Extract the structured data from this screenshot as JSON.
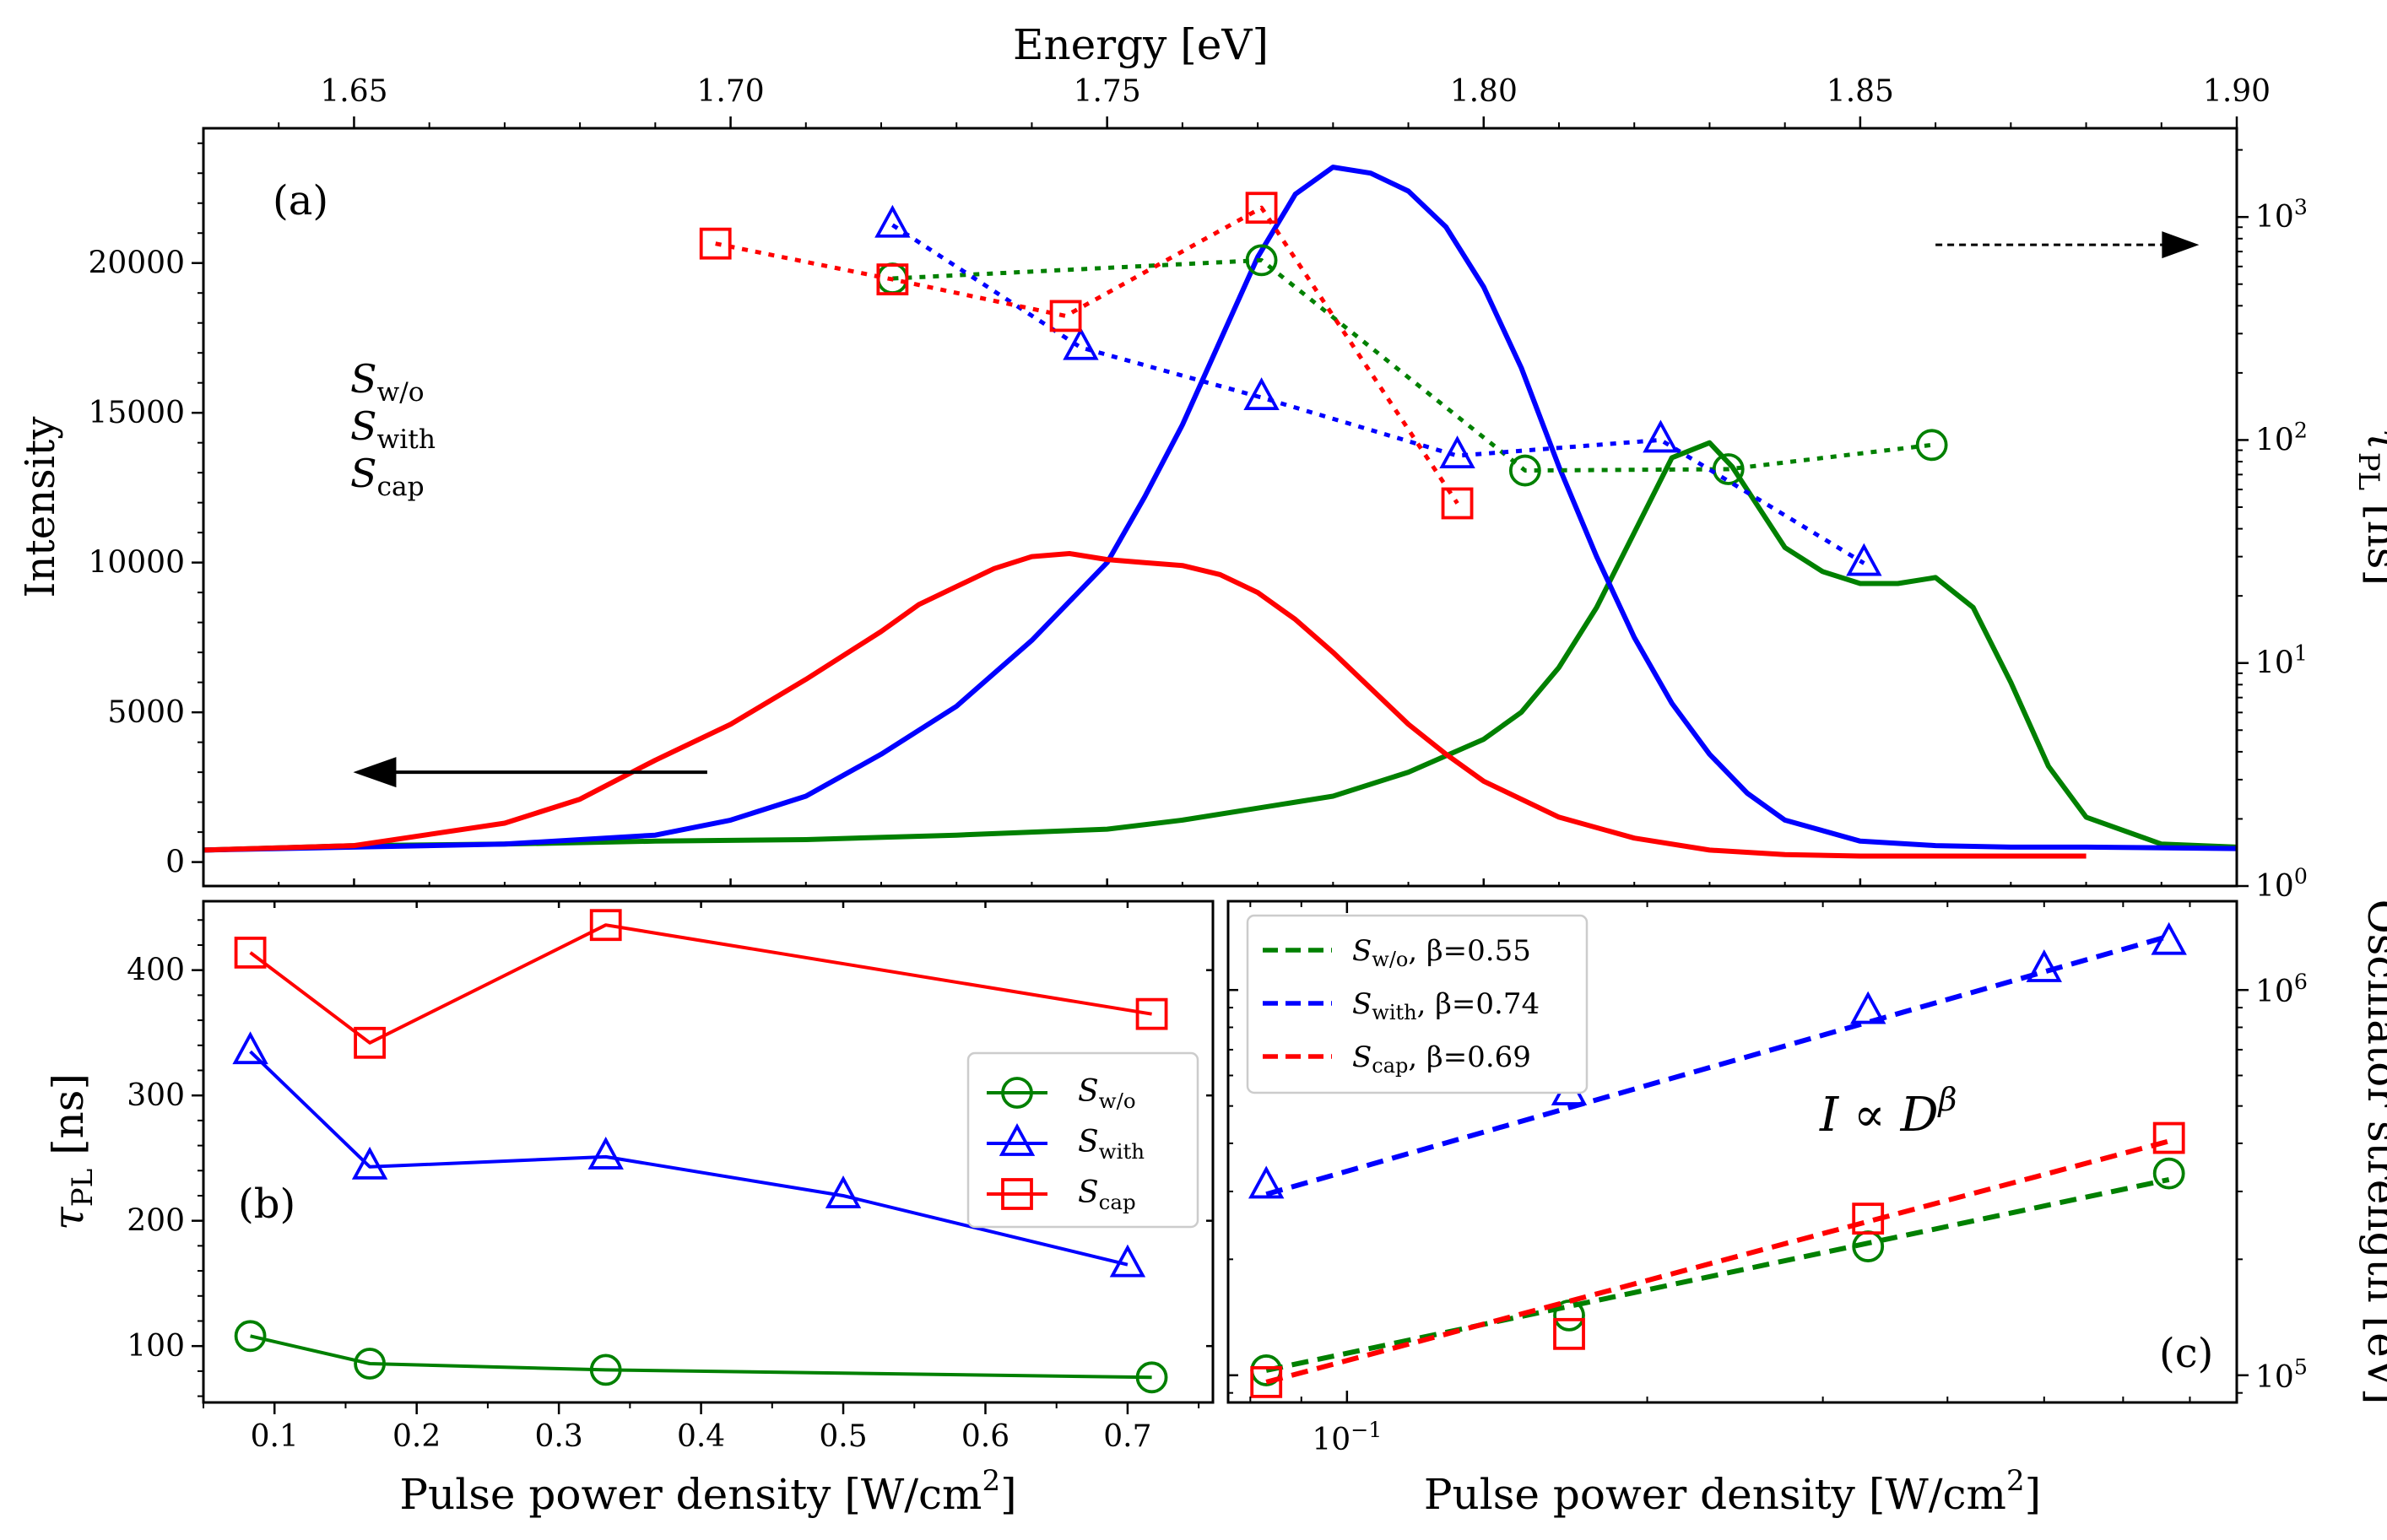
{
  "colors": {
    "w_o": "#008000",
    "with": "#0000ff",
    "cap": "#ff0000",
    "axis": "#000000"
  },
  "chart_data": [
    {
      "id": "panel-a",
      "type": "line",
      "panel_label": "(a)",
      "xlabel_top": "Energy [eV]",
      "ylabel_left": "Intensity",
      "ylabel_right_sym": "τ",
      "ylabel_right_sub": "PL",
      "ylabel_right_unit": " [ns]",
      "x_range": [
        1.63,
        1.9
      ],
      "x_ticks": [
        1.65,
        1.7,
        1.75,
        1.8,
        1.85,
        1.9
      ],
      "x_tick_labels": [
        "1.65",
        "1.70",
        "1.75",
        "1.80",
        "1.85",
        "1.90"
      ],
      "y_left_range": [
        -800,
        24500
      ],
      "y_left_ticks": [
        0,
        5000,
        10000,
        15000,
        20000
      ],
      "y_left_tick_labels": [
        "0",
        "5000",
        "10000",
        "15000",
        "20000"
      ],
      "y_right_range": [
        1,
        2500
      ],
      "y_right_scale": "log",
      "y_right_ticks": [
        1,
        10,
        100,
        1000
      ],
      "y_right_tick_labels": [
        {
          "base": "10",
          "exp": "0"
        },
        {
          "base": "10",
          "exp": "1"
        },
        {
          "base": "10",
          "exp": "2"
        },
        {
          "base": "10",
          "exp": "3"
        }
      ],
      "inline_legend": [
        {
          "sym": "S",
          "sub": "w/o",
          "color_key": "w_o"
        },
        {
          "sym": "S",
          "sub": "with",
          "color_key": "with"
        },
        {
          "sym": "S",
          "sub": "cap",
          "color_key": "cap"
        }
      ],
      "arrow_left_axis": {
        "x": [
          1.65,
          1.67
        ],
        "y": 3000
      },
      "arrow_right_axis": {
        "x": [
          1.86,
          1.895
        ],
        "y": 750
      },
      "spectra": [
        {
          "key": "w_o",
          "x": [
            1.63,
            1.65,
            1.67,
            1.69,
            1.71,
            1.73,
            1.74,
            1.75,
            1.76,
            1.77,
            1.78,
            1.79,
            1.8,
            1.805,
            1.81,
            1.815,
            1.82,
            1.825,
            1.83,
            1.833,
            1.84,
            1.845,
            1.85,
            1.855,
            1.86,
            1.865,
            1.87,
            1.875,
            1.88,
            1.89,
            1.9
          ],
          "y": [
            400,
            550,
            600,
            700,
            750,
            900,
            1000,
            1100,
            1400,
            1800,
            2200,
            3000,
            4100,
            5000,
            6500,
            8500,
            11000,
            13500,
            14000,
            13200,
            10500,
            9700,
            9300,
            9300,
            9500,
            8500,
            6000,
            3200,
            1500,
            600,
            500
          ]
        },
        {
          "key": "with",
          "x": [
            1.63,
            1.65,
            1.67,
            1.69,
            1.7,
            1.71,
            1.72,
            1.73,
            1.74,
            1.75,
            1.755,
            1.76,
            1.765,
            1.77,
            1.775,
            1.78,
            1.785,
            1.79,
            1.795,
            1.8,
            1.805,
            1.81,
            1.815,
            1.82,
            1.825,
            1.83,
            1.835,
            1.84,
            1.85,
            1.86,
            1.87,
            1.88,
            1.9
          ],
          "y": [
            400,
            500,
            600,
            900,
            1400,
            2200,
            3600,
            5200,
            7400,
            10000,
            12200,
            14600,
            17400,
            20200,
            22300,
            23200,
            23000,
            22400,
            21200,
            19200,
            16500,
            13200,
            10200,
            7500,
            5300,
            3600,
            2300,
            1400,
            700,
            550,
            500,
            500,
            450
          ]
        },
        {
          "key": "cap",
          "x": [
            1.63,
            1.65,
            1.67,
            1.68,
            1.69,
            1.7,
            1.71,
            1.72,
            1.725,
            1.73,
            1.735,
            1.74,
            1.745,
            1.75,
            1.755,
            1.76,
            1.765,
            1.77,
            1.775,
            1.78,
            1.785,
            1.79,
            1.795,
            1.8,
            1.81,
            1.82,
            1.83,
            1.84,
            1.85,
            1.86,
            1.88
          ],
          "y": [
            400,
            550,
            1300,
            2100,
            3400,
            4600,
            6100,
            7700,
            8600,
            9200,
            9800,
            10200,
            10300,
            10100,
            10000,
            9900,
            9600,
            9000,
            8100,
            7000,
            5800,
            4600,
            3600,
            2700,
            1500,
            800,
            400,
            250,
            200,
            200,
            200
          ]
        }
      ],
      "lifetimes": [
        {
          "key": "w_o",
          "marker": "circle",
          "x": [
            1.7215,
            1.7705,
            1.8055,
            1.8325,
            1.8595
          ],
          "y": [
            530,
            640,
            73,
            74,
            95
          ]
        },
        {
          "key": "with",
          "marker": "triangle",
          "x": [
            1.7215,
            1.7465,
            1.7705,
            1.7965,
            1.8235,
            1.8505
          ],
          "y": [
            920,
            260,
            155,
            85,
            100,
            28
          ]
        },
        {
          "key": "cap",
          "marker": "square",
          "x": [
            1.698,
            1.7215,
            1.7445,
            1.7705,
            1.7965
          ],
          "y": [
            760,
            525,
            360,
            1100,
            52
          ]
        }
      ]
    },
    {
      "id": "panel-b",
      "type": "line",
      "panel_label": "(b)",
      "xlabel": "Pulse power density [W/cm",
      "xlabel_sup": "2",
      "xlabel_end": "]",
      "ylabel_sym": "τ",
      "ylabel_sub": "PL",
      "ylabel_unit": " [ns]",
      "x_range": [
        0.05,
        0.76
      ],
      "x_ticks": [
        0.1,
        0.2,
        0.3,
        0.4,
        0.5,
        0.6,
        0.7
      ],
      "x_tick_labels": [
        "0.1",
        "0.2",
        "0.3",
        "0.4",
        "0.5",
        "0.6",
        "0.7"
      ],
      "y_range": [
        55,
        455
      ],
      "y_ticks": [
        100,
        200,
        300,
        400
      ],
      "y_tick_labels": [
        "100",
        "200",
        "300",
        "400"
      ],
      "legend_position": "center-right",
      "series": [
        {
          "key": "w_o",
          "name_sym": "S",
          "name_sub": "w/o",
          "marker": "circle",
          "x": [
            0.083,
            0.167,
            0.333,
            0.717
          ],
          "y": [
            108,
            86,
            81,
            75
          ]
        },
        {
          "key": "with",
          "name_sym": "S",
          "name_sub": "with",
          "marker": "triangle",
          "x": [
            0.083,
            0.167,
            0.333,
            0.5,
            0.7
          ],
          "y": [
            335,
            243,
            251,
            220,
            165
          ]
        },
        {
          "key": "cap",
          "name_sym": "S",
          "name_sub": "cap",
          "marker": "square",
          "x": [
            0.083,
            0.167,
            0.333,
            0.717
          ],
          "y": [
            414,
            342,
            436,
            365
          ]
        }
      ]
    },
    {
      "id": "panel-c",
      "type": "scatter",
      "panel_label": "(c)",
      "xlabel": "Pulse power density [W/cm",
      "xlabel_sup": "2",
      "xlabel_end": "]",
      "x_scale": "log",
      "y_scale": "log",
      "ylabel_right": "Oscillator strength [eV]",
      "x_range": [
        0.076,
        0.78
      ],
      "x_major_ticks": [
        {
          "value": 0.1,
          "base": "10",
          "exp": "−1"
        }
      ],
      "y_range": [
        85000,
        1700000
      ],
      "y_major_ticks": [
        {
          "value": 100000,
          "base": "10",
          "exp": "5"
        },
        {
          "value": 1000000,
          "base": "10",
          "exp": "6"
        }
      ],
      "annotation": {
        "lhs": "I ∝ D",
        "exp": "β"
      },
      "legend_position": "top-left",
      "series": [
        {
          "key": "w_o",
          "name_sym": "S",
          "name_sub": "w/o",
          "beta_label": ", β=0.55",
          "beta": 0.55,
          "marker": "circle",
          "x": [
            0.083,
            0.167,
            0.333,
            0.667
          ],
          "y": [
            103000,
            143000,
            216000,
            334000
          ],
          "fit_x": [
            0.083,
            0.667
          ],
          "fit_y": [
            103000,
            322000
          ]
        },
        {
          "key": "with",
          "name_sym": "S",
          "name_sub": "with",
          "beta_label": ", β=0.74",
          "beta": 0.74,
          "marker": "triangle",
          "x": [
            0.083,
            0.167,
            0.333,
            0.5,
            0.667
          ],
          "y": [
            310000,
            541000,
            880000,
            1130000,
            1330000
          ],
          "fit_x": [
            0.083,
            0.667
          ],
          "fit_y": [
            295000,
            1380000
          ]
        },
        {
          "key": "cap",
          "name_sym": "S",
          "name_sub": "cap",
          "beta_label": ", β=0.69",
          "beta": 0.69,
          "marker": "square",
          "x": [
            0.083,
            0.167,
            0.333,
            0.667
          ],
          "y": [
            96000,
            128000,
            255000,
            413000
          ],
          "fit_x": [
            0.083,
            0.667
          ],
          "fit_y": [
            96000,
            405000
          ]
        }
      ]
    }
  ]
}
